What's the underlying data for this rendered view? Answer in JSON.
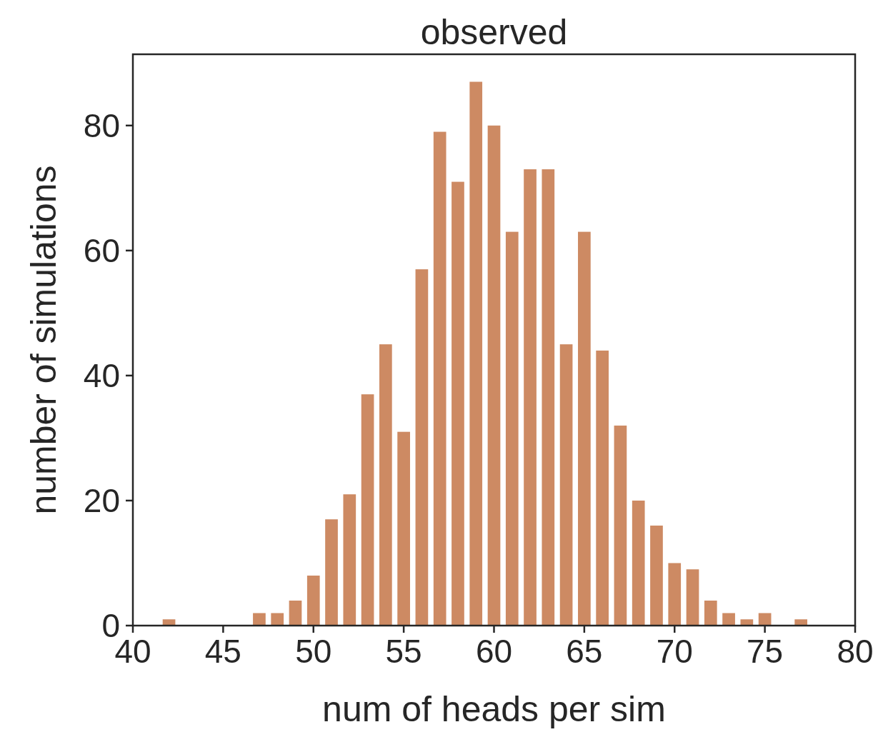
{
  "chart_data": {
    "type": "histogram",
    "title": "observed",
    "xlabel": "num of heads per sim",
    "ylabel": "number of simulations",
    "bins": [
      41.5,
      42.5,
      43.5,
      44.5,
      45.5,
      46.5,
      47.5,
      48.5,
      49.5,
      50.5,
      51.5,
      52.5,
      53.5,
      54.5,
      55.5,
      56.5,
      57.5,
      58.5,
      59.5,
      60.5,
      61.5,
      62.5,
      63.5,
      64.5,
      65.5,
      66.5,
      67.5,
      68.5,
      69.5,
      70.5,
      71.5,
      72.5,
      73.5,
      74.5,
      75.5,
      76.5,
      77.5
    ],
    "values": [
      1,
      0,
      0,
      0,
      0,
      2,
      2,
      4,
      8,
      17,
      21,
      37,
      45,
      31,
      57,
      79,
      71,
      87,
      80,
      63,
      73,
      73,
      45,
      63,
      44,
      32,
      20,
      16,
      10,
      9,
      4,
      2,
      1,
      2,
      0,
      1
    ],
    "color": "#cd8a63",
    "xlim": [
      40,
      80
    ],
    "xticks": [
      40,
      45,
      50,
      55,
      60,
      65,
      70,
      75,
      80
    ],
    "ylim": [
      0,
      91.4
    ],
    "yticks": [
      0,
      20,
      40,
      60,
      80
    ],
    "grid": false
  }
}
